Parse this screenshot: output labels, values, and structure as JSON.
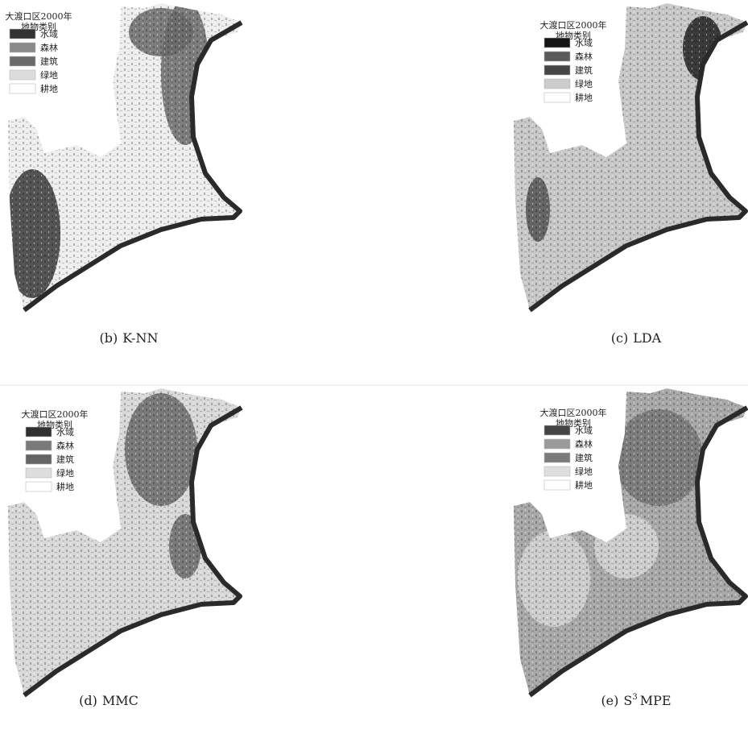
{
  "panels": [
    {
      "legend": {
        "title": [
          "大渡口区2000年",
          "地物类别"
        ],
        "items": [
          {
            "label": "水域",
            "color": "#333333"
          },
          {
            "label": "森林",
            "color": "#8a8a8a"
          },
          {
            "label": "建筑",
            "color": "#6a6a6a"
          },
          {
            "label": "绿地",
            "color": "#dcdcdc"
          },
          {
            "label": "耕地",
            "color": "#ffffff"
          }
        ]
      },
      "caption": {
        "label": "(b)",
        "method": "K-NN"
      }
    },
    {
      "legend": {
        "title": [
          "大渡口区2000年",
          "地物类别"
        ],
        "items": [
          {
            "label": "水域",
            "color": "#151515"
          },
          {
            "label": "森林",
            "color": "#5a5a5a"
          },
          {
            "label": "建筑",
            "color": "#454545"
          },
          {
            "label": "绿地",
            "color": "#cccccc"
          },
          {
            "label": "耕地",
            "color": "#ffffff"
          }
        ]
      },
      "caption": {
        "label": "(c)",
        "method": "LDA"
      }
    },
    {
      "legend": {
        "title": [
          "大渡口区2000年",
          "地物类别"
        ],
        "items": [
          {
            "label": "水域",
            "color": "#303030"
          },
          {
            "label": "森林",
            "color": "#7a7a7a"
          },
          {
            "label": "建筑",
            "color": "#646464"
          },
          {
            "label": "绿地",
            "color": "#dddddd"
          },
          {
            "label": "耕地",
            "color": "#ffffff"
          }
        ]
      },
      "caption": {
        "label": "(d)",
        "method": "MMC"
      }
    },
    {
      "legend": {
        "title": [
          "大渡口区2000年",
          "地物类别"
        ],
        "items": [
          {
            "label": "水域",
            "color": "#444444"
          },
          {
            "label": "森林",
            "color": "#9a9a9a"
          },
          {
            "label": "建筑",
            "color": "#7a7a7a"
          },
          {
            "label": "绿地",
            "color": "#dedede"
          },
          {
            "label": "耕地",
            "color": "#ffffff"
          }
        ]
      },
      "caption": {
        "label": "(e)",
        "method": "S",
        "method_sup": "3",
        "method_rest": "MPE"
      }
    }
  ]
}
